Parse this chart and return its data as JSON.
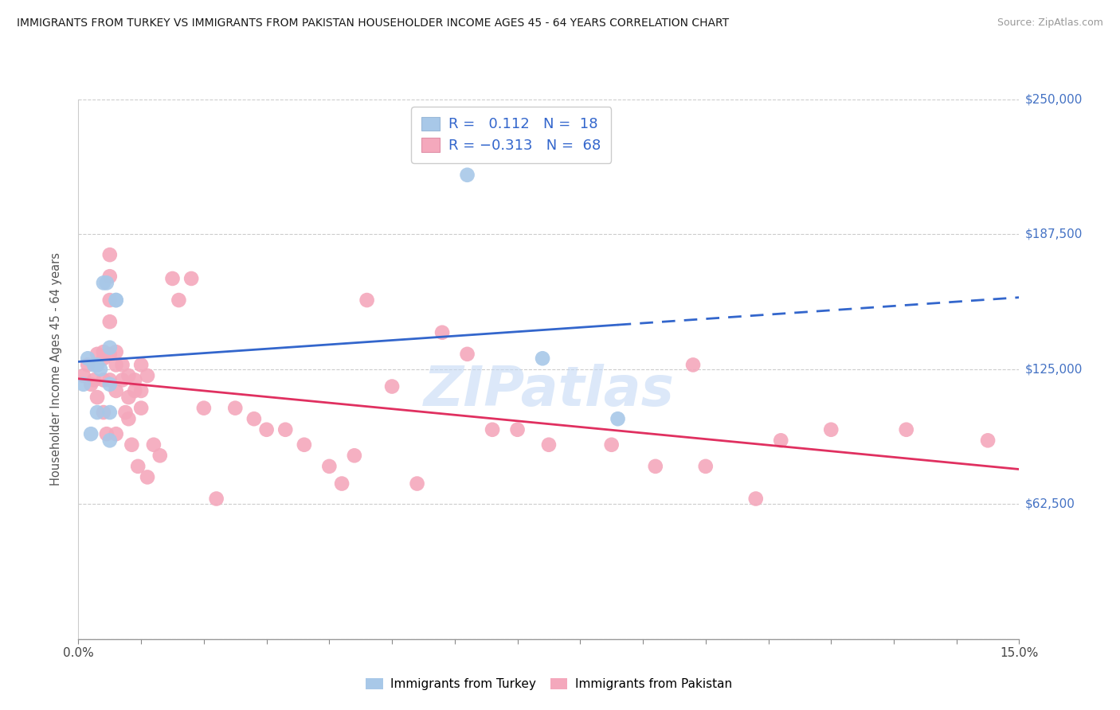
{
  "title": "IMMIGRANTS FROM TURKEY VS IMMIGRANTS FROM PAKISTAN HOUSEHOLDER INCOME AGES 45 - 64 YEARS CORRELATION CHART",
  "source": "Source: ZipAtlas.com",
  "ylabel": "Householder Income Ages 45 - 64 years",
  "xlim": [
    0.0,
    0.15
  ],
  "ylim": [
    0,
    250000
  ],
  "yticks": [
    0,
    62500,
    125000,
    187500,
    250000
  ],
  "ytick_labels": [
    "",
    "$62,500",
    "$125,000",
    "$187,500",
    "$250,000"
  ],
  "xtick_positions": [
    0.0,
    0.01,
    0.02,
    0.03,
    0.04,
    0.05,
    0.06,
    0.07,
    0.08,
    0.09,
    0.1,
    0.11,
    0.12,
    0.13,
    0.14,
    0.15
  ],
  "xtick_labels": [
    "0.0%",
    "",
    "",
    "",
    "",
    "",
    "",
    "",
    "",
    "",
    "",
    "",
    "",
    "",
    "",
    "15.0%"
  ],
  "turkey_color": "#a8c8e8",
  "pakistan_color": "#f4a8bc",
  "turkey_line_color": "#3366cc",
  "pakistan_line_color": "#e03060",
  "turkey_R": "0.112",
  "turkey_N": "18",
  "pakistan_R": "-0.313",
  "pakistan_N": "68",
  "watermark": "ZIPatlas",
  "turkey_scatter_x": [
    0.0008,
    0.0015,
    0.002,
    0.0025,
    0.003,
    0.003,
    0.0035,
    0.004,
    0.0045,
    0.005,
    0.005,
    0.005,
    0.005,
    0.006,
    0.006,
    0.062,
    0.074,
    0.086
  ],
  "turkey_scatter_y": [
    118000,
    130000,
    95000,
    127000,
    127000,
    105000,
    125000,
    165000,
    165000,
    135000,
    118000,
    105000,
    92000,
    157000,
    157000,
    215000,
    130000,
    102000
  ],
  "pakistan_scatter_x": [
    0.0008,
    0.0015,
    0.002,
    0.0025,
    0.003,
    0.003,
    0.004,
    0.004,
    0.004,
    0.004,
    0.0045,
    0.005,
    0.005,
    0.005,
    0.005,
    0.005,
    0.005,
    0.006,
    0.006,
    0.006,
    0.006,
    0.007,
    0.007,
    0.0075,
    0.008,
    0.008,
    0.008,
    0.0085,
    0.009,
    0.009,
    0.0095,
    0.01,
    0.01,
    0.01,
    0.011,
    0.011,
    0.012,
    0.013,
    0.015,
    0.016,
    0.018,
    0.02,
    0.022,
    0.025,
    0.028,
    0.03,
    0.033,
    0.036,
    0.04,
    0.042,
    0.044,
    0.046,
    0.05,
    0.054,
    0.058,
    0.062,
    0.066,
    0.07,
    0.075,
    0.085,
    0.092,
    0.098,
    0.1,
    0.108,
    0.112,
    0.12,
    0.132,
    0.145
  ],
  "pakistan_scatter_y": [
    122000,
    127000,
    118000,
    120000,
    132000,
    112000,
    133000,
    130000,
    120000,
    105000,
    95000,
    178000,
    168000,
    157000,
    147000,
    132000,
    120000,
    133000,
    127000,
    115000,
    95000,
    127000,
    120000,
    105000,
    122000,
    112000,
    102000,
    90000,
    120000,
    115000,
    80000,
    127000,
    115000,
    107000,
    122000,
    75000,
    90000,
    85000,
    167000,
    157000,
    167000,
    107000,
    65000,
    107000,
    102000,
    97000,
    97000,
    90000,
    80000,
    72000,
    85000,
    157000,
    117000,
    72000,
    142000,
    132000,
    97000,
    97000,
    90000,
    90000,
    80000,
    127000,
    80000,
    65000,
    92000,
    97000,
    97000,
    92000
  ]
}
